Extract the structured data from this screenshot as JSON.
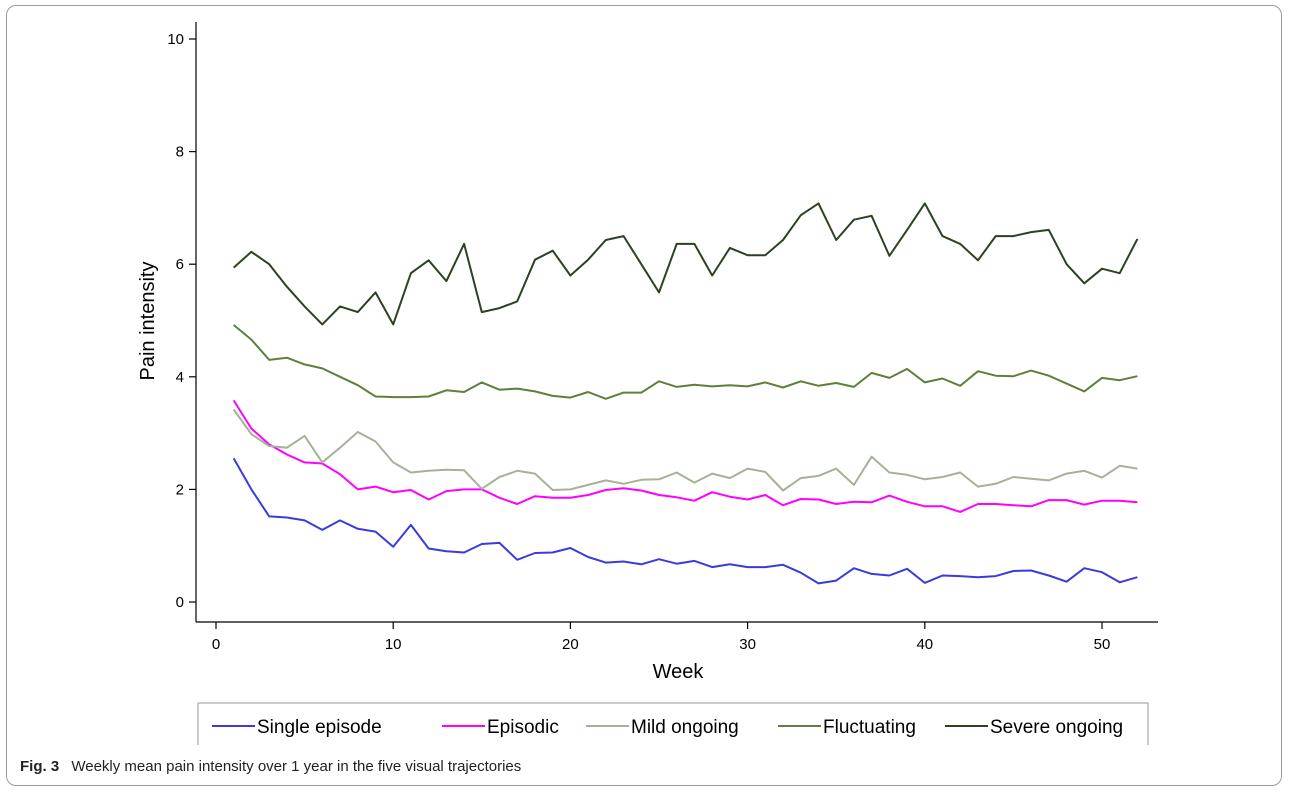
{
  "chart_data": {
    "type": "line",
    "title": "",
    "xlabel": "Week",
    "ylabel": "Pain intensity",
    "xlim": [
      0,
      53
    ],
    "ylim": [
      0,
      10
    ],
    "x_ticks": [
      0,
      10,
      20,
      30,
      40,
      50
    ],
    "y_ticks": [
      0,
      2,
      4,
      6,
      8,
      10
    ],
    "grid": false,
    "legend_position": "bottom",
    "x": [
      1,
      2,
      3,
      4,
      5,
      6,
      7,
      8,
      9,
      10,
      11,
      12,
      13,
      14,
      15,
      16,
      17,
      18,
      19,
      20,
      21,
      22,
      23,
      24,
      25,
      26,
      27,
      28,
      29,
      30,
      31,
      32,
      33,
      34,
      35,
      36,
      37,
      38,
      39,
      40,
      41,
      42,
      43,
      44,
      45,
      46,
      47,
      48,
      49,
      50,
      51,
      52
    ],
    "series": [
      {
        "name": "Single episode",
        "color": "#3b3bdc",
        "values": [
          2.55,
          2.0,
          1.52,
          1.5,
          1.45,
          1.28,
          1.45,
          1.3,
          1.25,
          0.98,
          1.37,
          0.95,
          0.9,
          0.88,
          1.03,
          1.05,
          0.75,
          0.87,
          0.88,
          0.96,
          0.8,
          0.7,
          0.72,
          0.67,
          0.76,
          0.68,
          0.73,
          0.62,
          0.67,
          0.62,
          0.62,
          0.66,
          0.52,
          0.33,
          0.38,
          0.6,
          0.5,
          0.47,
          0.59,
          0.34,
          0.47,
          0.46,
          0.44,
          0.46,
          0.55,
          0.56,
          0.47,
          0.36,
          0.6,
          0.53,
          0.35,
          0.44
        ]
      },
      {
        "name": "Episodic",
        "color": "#ff00ff",
        "values": [
          3.58,
          3.08,
          2.8,
          2.62,
          2.48,
          2.46,
          2.27,
          2.0,
          2.05,
          1.95,
          1.99,
          1.82,
          1.97,
          2.0,
          2.0,
          1.85,
          1.74,
          1.88,
          1.85,
          1.85,
          1.9,
          1.99,
          2.02,
          1.98,
          1.9,
          1.86,
          1.8,
          1.95,
          1.87,
          1.82,
          1.9,
          1.72,
          1.83,
          1.82,
          1.74,
          1.78,
          1.77,
          1.89,
          1.78,
          1.7,
          1.7,
          1.6,
          1.74,
          1.74,
          1.72,
          1.7,
          1.81,
          1.81,
          1.73,
          1.8,
          1.8,
          1.77
        ]
      },
      {
        "name": "Mild ongoing",
        "color": "#a6b298",
        "values": [
          3.42,
          2.98,
          2.77,
          2.74,
          2.95,
          2.48,
          2.74,
          3.02,
          2.85,
          2.48,
          2.3,
          2.33,
          2.35,
          2.34,
          2.01,
          2.22,
          2.33,
          2.28,
          1.99,
          2.0,
          2.08,
          2.16,
          2.1,
          2.17,
          2.18,
          2.3,
          2.12,
          2.28,
          2.2,
          2.37,
          2.31,
          1.98,
          2.2,
          2.24,
          2.37,
          2.08,
          2.58,
          2.3,
          2.26,
          2.18,
          2.22,
          2.3,
          2.05,
          2.1,
          2.22,
          2.19,
          2.16,
          2.28,
          2.33,
          2.21,
          2.42,
          2.37
        ]
      },
      {
        "name": "Fluctuating",
        "color": "#5f7f3a",
        "values": [
          4.92,
          4.66,
          4.3,
          4.34,
          4.22,
          4.15,
          4.0,
          3.85,
          3.65,
          3.64,
          3.64,
          3.65,
          3.76,
          3.73,
          3.9,
          3.77,
          3.79,
          3.74,
          3.66,
          3.63,
          3.73,
          3.61,
          3.72,
          3.72,
          3.92,
          3.82,
          3.86,
          3.83,
          3.85,
          3.83,
          3.9,
          3.81,
          3.92,
          3.84,
          3.89,
          3.82,
          4.07,
          3.98,
          4.14,
          3.9,
          3.97,
          3.84,
          4.1,
          4.02,
          4.01,
          4.11,
          4.02,
          3.88,
          3.74,
          3.98,
          3.94,
          4.01
        ]
      },
      {
        "name": "Severe ongoing",
        "color": "#2d4222",
        "values": [
          5.94,
          6.22,
          6.0,
          5.6,
          5.25,
          4.93,
          5.25,
          5.15,
          5.5,
          4.93,
          5.84,
          6.07,
          5.7,
          6.36,
          5.15,
          5.22,
          5.34,
          6.08,
          6.24,
          5.8,
          6.08,
          6.43,
          6.5,
          6.0,
          5.5,
          6.36,
          6.36,
          5.8,
          6.29,
          6.16,
          6.16,
          6.43,
          6.87,
          7.08,
          6.43,
          6.79,
          6.86,
          6.15,
          6.61,
          7.08,
          6.5,
          6.36,
          6.07,
          6.5,
          6.5,
          6.57,
          6.61,
          6.0,
          5.66,
          5.92,
          5.84,
          6.45
        ]
      }
    ]
  },
  "caption": {
    "figure_label": "Fig. 3",
    "text": "Weekly mean pain intensity over 1 year in the five visual trajectories"
  }
}
